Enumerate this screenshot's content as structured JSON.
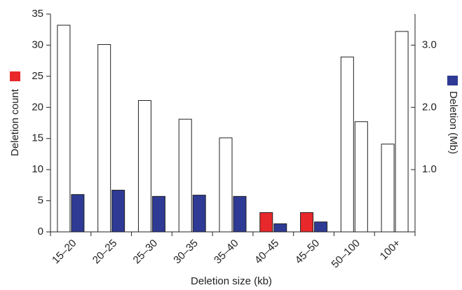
{
  "chart_data": {
    "type": "bar",
    "x_label": "Deletion size (kb)",
    "y_label": "Deletion count",
    "y2_label": "Deletion (Mb)",
    "categories": [
      "15–20",
      "20–25",
      "25–30",
      "30–35",
      "35–40",
      "40–45",
      "45–50",
      "50–100",
      "100+"
    ],
    "series": [
      {
        "axis": "y",
        "marker_color": "#e8282b",
        "colors": [
          "#ffffff",
          "#ffffff",
          "#ffffff",
          "#ffffff",
          "#ffffff",
          "#e8282b",
          "#e8282b",
          "#ffffff",
          "#ffffff"
        ],
        "values": [
          33.2,
          30.1,
          21.1,
          18.1,
          15.1,
          3.1,
          3.1,
          28.1,
          14.1
        ]
      },
      {
        "axis": "y2",
        "marker_color": "#2e3a94",
        "colors": [
          "#2e3a94",
          "#2e3a94",
          "#2e3a94",
          "#2e3a94",
          "#2e3a94",
          "#2e3a94",
          "#2e3a94",
          "#ffffff",
          "#ffffff"
        ],
        "values": [
          0.6,
          0.67,
          0.57,
          0.59,
          0.57,
          0.13,
          0.16,
          1.77,
          3.22
        ]
      }
    ],
    "ylim": [
      0,
      35
    ],
    "yticks": [
      0,
      5,
      10,
      15,
      20,
      25,
      30,
      35
    ],
    "y2lim": [
      0,
      3.5
    ],
    "y2ticks": [
      {
        "value": 1,
        "label": "1.0"
      },
      {
        "value": 2,
        "label": "2.0"
      },
      {
        "value": 3,
        "label": "3.0"
      }
    ]
  }
}
